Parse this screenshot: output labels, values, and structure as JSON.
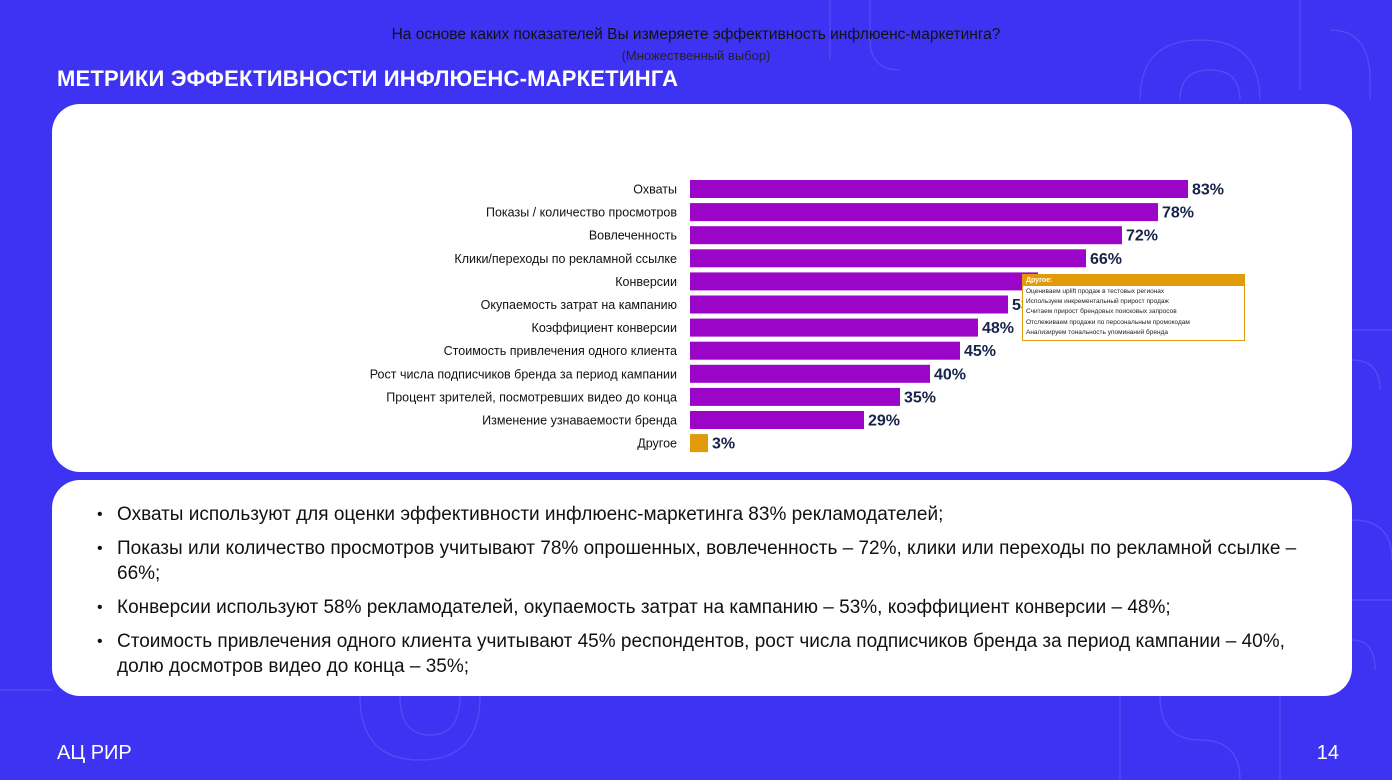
{
  "page": {
    "title": "МЕТРИКИ ЭФФЕКТИВНОСТИ ИНФЛЮЕНС-МАРКЕТИНГА",
    "footer_brand": "АЦ РИР",
    "page_number": "14"
  },
  "colors": {
    "background": "#3f33f3",
    "bar": "#9a05c8",
    "bar_other": "#e19a09",
    "value_label": "#17234a"
  },
  "chart_data": {
    "type": "bar",
    "orientation": "horizontal",
    "title": "На основе каких показателей Вы измеряете эффективность инфлюенс-маркетинга?",
    "subtitle": "(Множественный выбор)",
    "categories": [
      "Охваты",
      "Показы / количество просмотров",
      "Вовлеченность",
      "Клики/переходы по рекламной ссылке",
      "Конверсии",
      "Окупаемость затрат на кампанию",
      "Коэффициент конверсии",
      "Стоимость привлечения одного клиента",
      "Рост числа подписчиков бренда за период кампании",
      "Процент зрителей, посмотревших видео до конца",
      "Изменение узнаваемости бренда",
      "Другое"
    ],
    "values": [
      83,
      78,
      72,
      66,
      58,
      53,
      48,
      45,
      40,
      35,
      29,
      3
    ],
    "value_labels": [
      "83%",
      "78%",
      "72%",
      "66%",
      "58%",
      "53%",
      "48%",
      "45%",
      "40%",
      "35%",
      "29%",
      "3%"
    ],
    "unit": "%",
    "highlight_index": 11,
    "xlim": [
      0,
      100
    ],
    "grid": false,
    "legend": "none"
  },
  "other_box": {
    "title": "Другое:",
    "items": [
      "Оцениваем uplift продаж в тестовых регионах",
      "Используем инкрементальный прирост продаж",
      "Считаем прирост брендовых поисковых запросов",
      "Отслеживаем продажи по персональным промокодам",
      "Анализируем тональность упоминаний бренда"
    ]
  },
  "summary": [
    "Охваты используют для оценки эффективности инфлюенс-маркетинга 83% рекламодателей;",
    "Показы или количество просмотров учитывают 78% опрошенных, вовлеченность – 72%, клики или переходы по рекламной ссылке – 66%;",
    "Конверсии используют 58% рекламодателей, окупаемость затрат на кампанию – 53%, коэффициент конверсии – 48%;",
    "Стоимость привлечения одного клиента учитывают 45% респондентов, рост числа подписчиков бренда за период кампании – 40%, долю досмотров видео до конца – 35%;"
  ]
}
